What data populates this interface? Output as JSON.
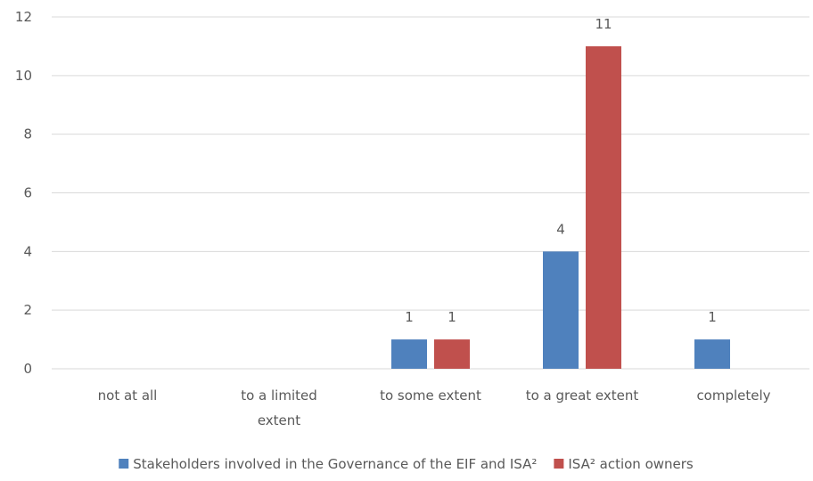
{
  "chart_data": {
    "type": "bar",
    "title": "",
    "xlabel": "",
    "ylabel": "",
    "categories": [
      [
        "not at all"
      ],
      [
        "to a limited",
        "extent"
      ],
      [
        "to some extent"
      ],
      [
        "to a great extent"
      ],
      [
        "completely"
      ]
    ],
    "series": [
      {
        "name": "Stakeholders involved in the Governance of the EIF and ISA²",
        "color": "#4f81bd",
        "values": [
          0,
          0,
          1,
          4,
          1
        ]
      },
      {
        "name": "ISA² action owners",
        "color": "#c0504d",
        "values": [
          0,
          0,
          1,
          11,
          0
        ]
      }
    ],
    "ylim": [
      0,
      12
    ],
    "yticks": [
      0,
      2,
      4,
      6,
      8,
      10,
      12
    ],
    "grid": true,
    "legend_position": "bottom",
    "show_data_labels": true
  }
}
